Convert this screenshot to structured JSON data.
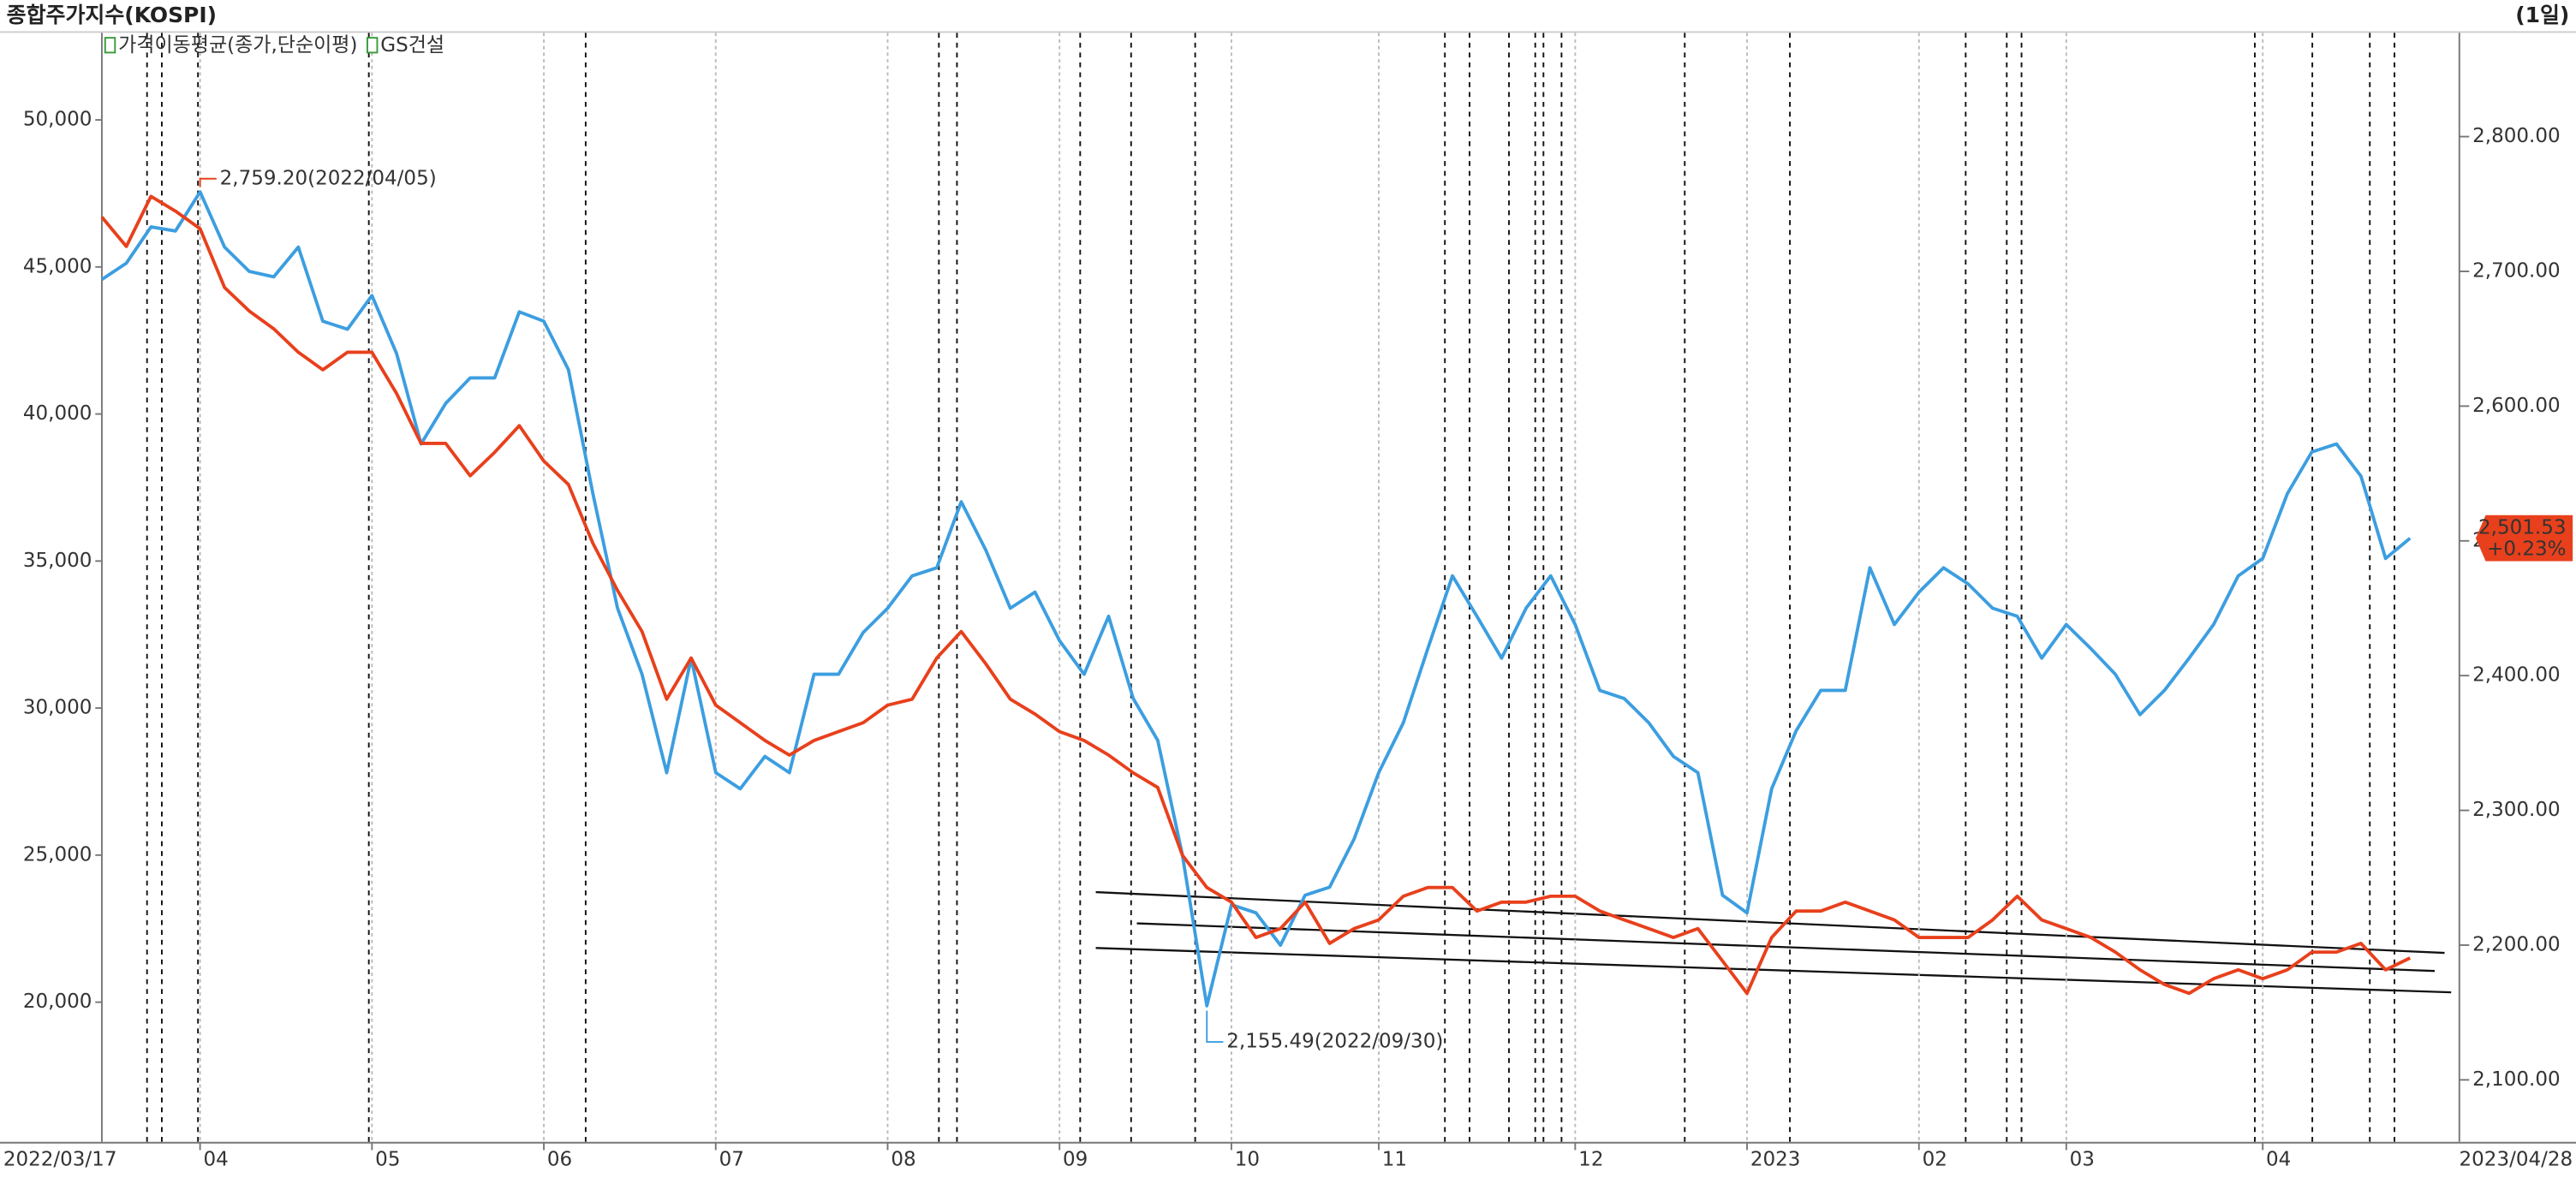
{
  "chart_data": {
    "type": "line",
    "title": "종합주가지수(KOSPI)",
    "period": "(1일)",
    "categories": [
      "2022/03/17",
      null,
      null,
      null,
      "04",
      null,
      null,
      null,
      null,
      null,
      null,
      "05",
      null,
      null,
      null,
      null,
      null,
      null,
      "06",
      null,
      null,
      null,
      null,
      null,
      null,
      "07",
      null,
      null,
      null,
      null,
      null,
      null,
      "08",
      null,
      null,
      null,
      null,
      null,
      null,
      "09",
      null,
      null,
      null,
      null,
      null,
      null,
      "10",
      null,
      null,
      null,
      null,
      null,
      "11",
      null,
      null,
      null,
      null,
      null,
      null,
      null,
      "12",
      null,
      null,
      null,
      null,
      null,
      null,
      "2023",
      null,
      null,
      null,
      null,
      null,
      null,
      "02",
      null,
      null,
      null,
      null,
      null,
      "03",
      null,
      null,
      null,
      null,
      null,
      null,
      null,
      "04",
      null,
      null,
      null,
      null,
      null,
      "2023/04/28"
    ],
    "series": [
      {
        "name": "가격이동평균(종가,단순이평)",
        "color": "#3c9ee0",
        "axis": "y2",
        "values": [
          2694,
          2706,
          2733,
          2730,
          2759,
          2718,
          2700,
          2696,
          2718,
          2663,
          2657,
          2682,
          2639,
          2572,
          2602,
          2621,
          2621,
          2670,
          2663,
          2627,
          2535,
          2450,
          2401,
          2328,
          2413,
          2328,
          2316,
          2340,
          2328,
          2401,
          2401,
          2432,
          2450,
          2474,
          2480,
          2529,
          2493,
          2450,
          2462,
          2426,
          2401,
          2444,
          2383,
          2352,
          2267,
          2155,
          2230,
          2224,
          2200,
          2237,
          2243,
          2279,
          2328,
          2365,
          2420,
          2474,
          2444,
          2413,
          2450,
          2474,
          2438,
          2389,
          2383,
          2365,
          2340,
          2328,
          2237,
          2224,
          2316,
          2359,
          2389,
          2389,
          2480,
          2438,
          2462,
          2480,
          2468,
          2450,
          2444,
          2413,
          2438,
          2420,
          2401,
          2371,
          2389,
          2413,
          2438,
          2474,
          2487,
          2535,
          2566,
          2572,
          2548,
          2487,
          2502
        ]
      },
      {
        "name": "GS건설",
        "color": "#e8401c",
        "axis": "y",
        "values": [
          46700,
          45700,
          47400,
          46900,
          46300,
          44300,
          43500,
          42900,
          42100,
          41500,
          42100,
          42100,
          40700,
          39000,
          39000,
          37900,
          38700,
          39600,
          38400,
          37600,
          35600,
          34000,
          32600,
          30300,
          31700,
          30100,
          29500,
          28900,
          28400,
          28900,
          29200,
          29500,
          30100,
          30300,
          31700,
          32600,
          31500,
          30300,
          29800,
          29200,
          28900,
          28400,
          27800,
          27300,
          25000,
          23900,
          23400,
          22200,
          22500,
          23400,
          22000,
          22500,
          22800,
          23600,
          23900,
          23900,
          23100,
          23400,
          23400,
          23600,
          23600,
          23100,
          22800,
          22500,
          22200,
          22500,
          21400,
          20300,
          22200,
          23100,
          23100,
          23400,
          23100,
          22800,
          22200,
          22200,
          22200,
          22800,
          23600,
          22800,
          22500,
          22200,
          21700,
          21100,
          20600,
          20300,
          20800,
          21100,
          20800,
          21100,
          21700,
          21700,
          22000,
          21100,
          21500
        ]
      }
    ],
    "ylim": [
      15250,
      52960
    ],
    "yticks": [
      {
        "value": 20000,
        "label": "20,000"
      },
      {
        "value": 25000,
        "label": "25,000"
      },
      {
        "value": 30000,
        "label": "30,000"
      },
      {
        "value": 35000,
        "label": "35,000"
      },
      {
        "value": 40000,
        "label": "40,000"
      },
      {
        "value": 45000,
        "label": "45,000"
      },
      {
        "value": 50000,
        "label": "50,000"
      }
    ],
    "y2lim": [
      2054,
      2877
    ],
    "y2ticks": [
      {
        "value": 2100,
        "label": "2,100.00"
      },
      {
        "value": 2200,
        "label": "2,200.00"
      },
      {
        "value": 2300,
        "label": "2,300.00"
      },
      {
        "value": 2400,
        "label": "2,400.00"
      },
      {
        "value": 2500,
        "label": "2,500.00"
      },
      {
        "value": 2600,
        "label": "2,600.00"
      },
      {
        "value": 2700,
        "label": "2,700.00"
      },
      {
        "value": 2800,
        "label": "2,800.00"
      }
    ],
    "annotations": [
      {
        "text": "2,759.20(2022/04/05)",
        "color": "#e8401c"
      },
      {
        "text": "2,155.49(2022/09/30)",
        "color": "#3c9ee0"
      }
    ],
    "last_value": {
      "label": "2,501.53",
      "change": "+0.23%",
      "color": "#e8401c"
    }
  }
}
